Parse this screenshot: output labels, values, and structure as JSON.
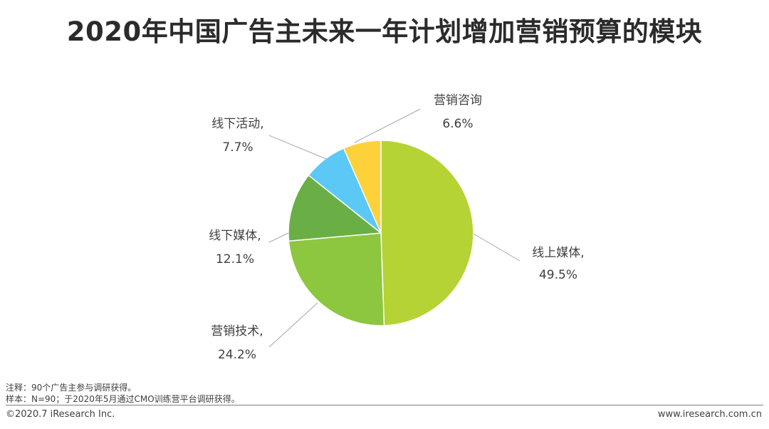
{
  "page": {
    "title": "2020年中国广告主未来一年计划增加营销预算的模块"
  },
  "chart_data": {
    "type": "pie",
    "title": "2020年中国广告主未来一年计划增加营销预算的模块",
    "slices": [
      {
        "label": "线上媒体,",
        "value": 49.5,
        "value_text": "49.5%",
        "color": "#b5d334"
      },
      {
        "label": "营销技术,",
        "value": 24.2,
        "value_text": "24.2%",
        "color": "#8dc63f"
      },
      {
        "label": "线下媒体,",
        "value": 12.1,
        "value_text": "12.1%",
        "color": "#6aaf45"
      },
      {
        "label": "线下活动,",
        "value": 7.7,
        "value_text": "7.7%",
        "color": "#5bc8f5"
      },
      {
        "label": "营销咨询",
        "value": 6.6,
        "value_text": "6.6%",
        "color": "#fdd13a"
      }
    ],
    "start": "12 o'clock",
    "direction": "clockwise"
  },
  "notes": {
    "note1": "注释：90个广告主参与调研获得。",
    "note2": "样本：N=90；于2020年5月通过CMO训练营平台调研获得。"
  },
  "footer": {
    "copyright": "©2020.7 iResearch Inc.",
    "website": "www.iresearch.com.cn"
  }
}
